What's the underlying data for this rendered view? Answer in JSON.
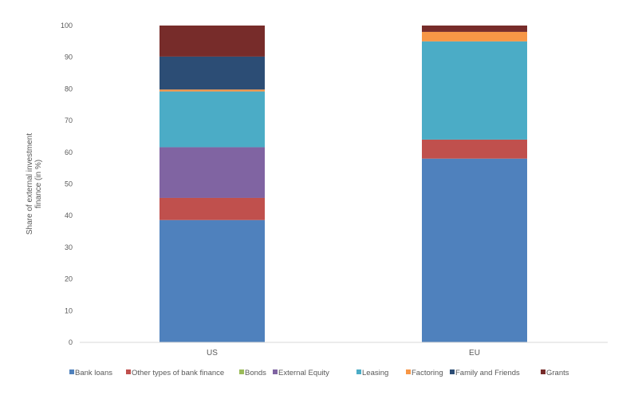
{
  "chart_data": {
    "type": "bar",
    "stacked": true,
    "categories": [
      "US",
      "EU"
    ],
    "series": [
      {
        "name": "Bank loans",
        "color": "#4f81bd",
        "values": [
          38.6,
          58.0
        ]
      },
      {
        "name": "Other types of bank finance",
        "color": "#c0504d",
        "values": [
          7.0,
          6.0
        ]
      },
      {
        "name": "Bonds",
        "color": "#9bbb59",
        "values": [
          0.0,
          0.0
        ]
      },
      {
        "name": "External Equity",
        "color": "#8064a2",
        "values": [
          16.0,
          0.0
        ]
      },
      {
        "name": "Leasing",
        "color": "#4bacc6",
        "values": [
          17.6,
          31.0
        ]
      },
      {
        "name": "Factoring",
        "color": "#f79646",
        "values": [
          0.6,
          3.0
        ]
      },
      {
        "name": "Family and Friends",
        "color": "#2c4d75",
        "values": [
          10.4,
          0.0
        ]
      },
      {
        "name": "Grants",
        "color": "#772c2a",
        "values": [
          9.8,
          2.0
        ]
      }
    ],
    "ylabel_lines": [
      "Share of external investment",
      "finance (in %)"
    ],
    "xlabel": "",
    "ylim": [
      0,
      100
    ],
    "yticks": [
      "0",
      "10",
      "20",
      "30",
      "40",
      "50",
      "60",
      "70",
      "80",
      "90",
      "100"
    ],
    "grid": false,
    "legend_position": "bottom"
  }
}
